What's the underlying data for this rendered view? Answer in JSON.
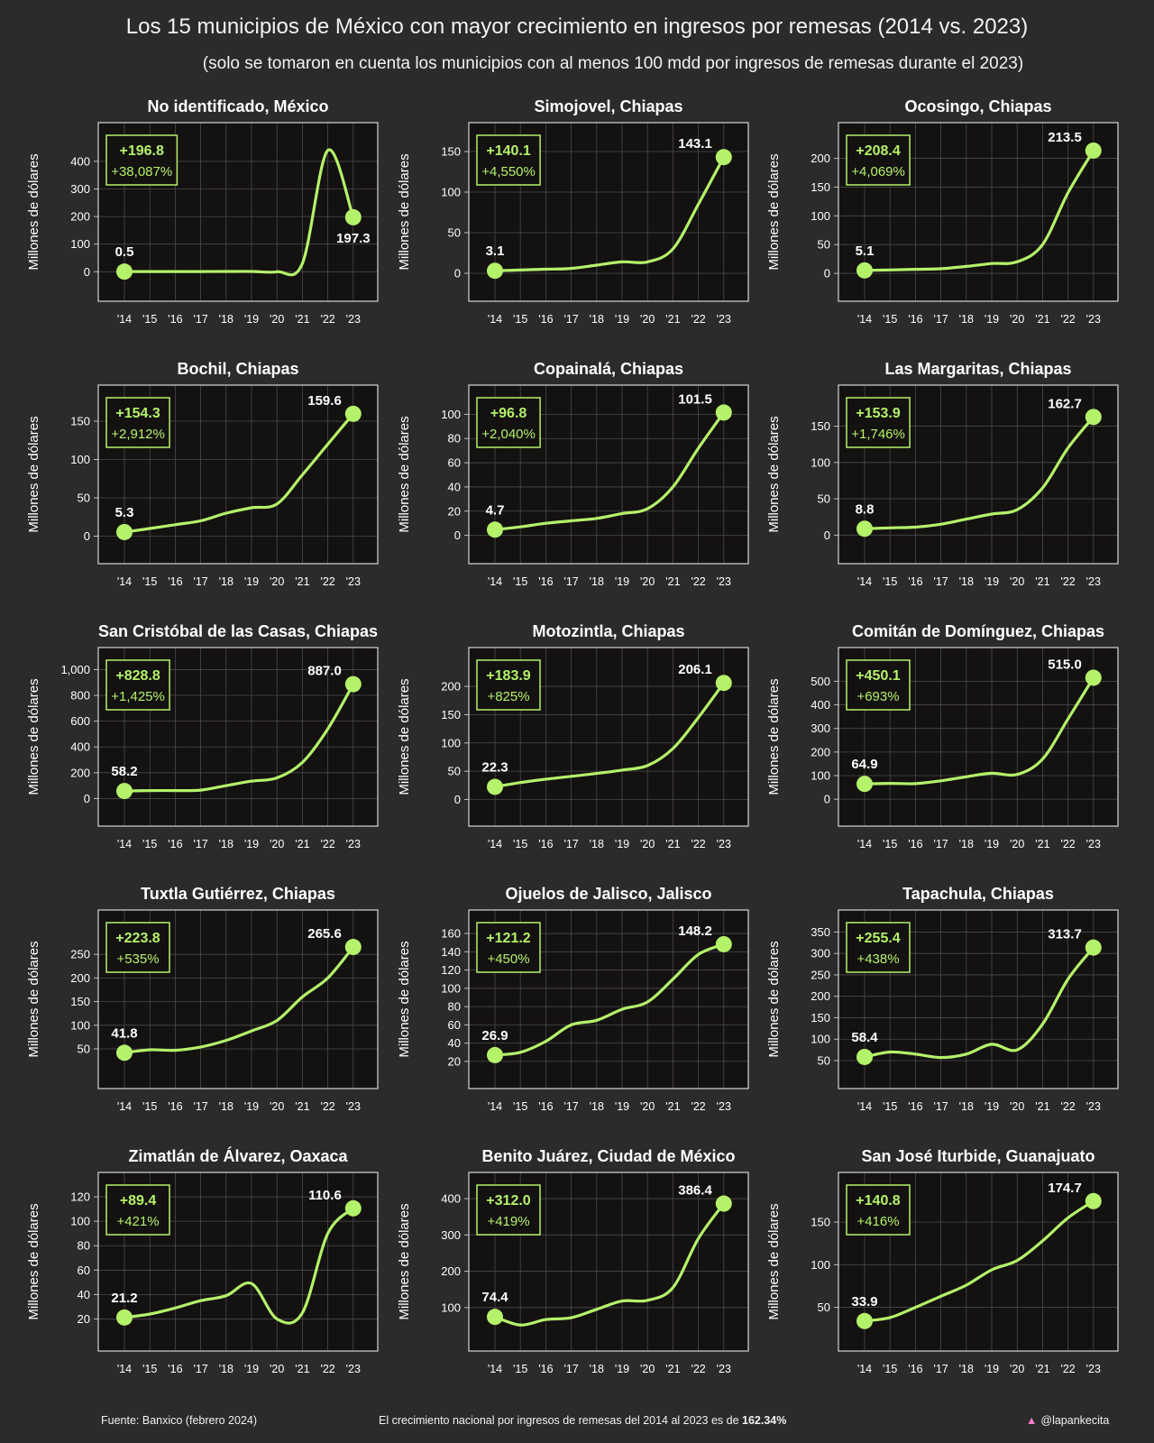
{
  "header": {
    "title": "Los 15 municipios de México con mayor crecimiento en ingresos por remesas (2014 vs. 2023)",
    "subtitle": "(solo se tomaron en cuenta los municipios con al menos 100 mdd por ingresos de remesas durante el 2023)"
  },
  "footer": {
    "source": "Fuente: Banxico (febrero 2024)",
    "national_prefix": "El crecimiento nacional por ingresos de remesas del 2014 al 2023 es de",
    "national_value": "162.34%",
    "handle": "@lapankecita"
  },
  "colors": {
    "background": "#2b2b2b",
    "plot_background": "#141111",
    "line": "#b4f26a",
    "text": "#ffffff",
    "grid": "#4a4a4a"
  },
  "chart_data": [
    {
      "type": "line",
      "title": "No identificado, México",
      "ylabel": "Millones de dólares",
      "x": [
        "'14",
        "'15",
        "'16",
        "'17",
        "'18",
        "'19",
        "'20",
        "'21",
        "'22",
        "'23"
      ],
      "values": [
        0.5,
        0.5,
        0.5,
        0.5,
        1,
        1,
        0,
        30,
        440,
        197.3
      ],
      "yticks": [
        0,
        100,
        200,
        300,
        400
      ],
      "ytick_labels": [
        "0",
        "100",
        "200",
        "300",
        "400"
      ],
      "ylim": [
        -35,
        465
      ],
      "start_label": "0.5",
      "end_label": "197.3",
      "change_abs": "+196.8",
      "change_pct": "+38,087%"
    },
    {
      "type": "line",
      "title": "Simojovel, Chiapas",
      "ylabel": "Millones de dólares",
      "x": [
        "'14",
        "'15",
        "'16",
        "'17",
        "'18",
        "'19",
        "'20",
        "'21",
        "'22",
        "'23"
      ],
      "values": [
        3.1,
        4,
        5,
        6,
        10,
        14,
        14,
        30,
        85,
        143.1
      ],
      "yticks": [
        0,
        50,
        100,
        150
      ],
      "ytick_labels": [
        "0",
        "50",
        "100",
        "150"
      ],
      "ylim": [
        -10,
        160
      ],
      "start_label": "3.1",
      "end_label": "143.1",
      "change_abs": "+140.1",
      "change_pct": "+4,550%"
    },
    {
      "type": "line",
      "title": "Ocosingo, Chiapas",
      "ylabel": "Millones de dólares",
      "x": [
        "'14",
        "'15",
        "'16",
        "'17",
        "'18",
        "'19",
        "'20",
        "'21",
        "'22",
        "'23"
      ],
      "values": [
        5.1,
        6,
        7,
        8,
        12,
        17,
        20,
        50,
        140,
        213.5
      ],
      "yticks": [
        0,
        50,
        100,
        150,
        200
      ],
      "ytick_labels": [
        "0",
        "50",
        "100",
        "150",
        "200"
      ],
      "ylim": [
        -14,
        226
      ],
      "start_label": "5.1",
      "end_label": "213.5",
      "change_abs": "+208.4",
      "change_pct": "+4,069%"
    },
    {
      "type": "line",
      "title": "Bochil, Chiapas",
      "ylabel": "Millones de dólares",
      "x": [
        "'14",
        "'15",
        "'16",
        "'17",
        "'18",
        "'19",
        "'20",
        "'21",
        "'22",
        "'23"
      ],
      "values": [
        5.3,
        10,
        15,
        20,
        30,
        37,
        42,
        80,
        120,
        159.6
      ],
      "yticks": [
        0,
        50,
        100,
        150
      ],
      "ytick_labels": [
        "0",
        "50",
        "100",
        "150"
      ],
      "ylim": [
        -10,
        170
      ],
      "start_label": "5.3",
      "end_label": "159.6",
      "change_abs": "+154.3",
      "change_pct": "+2,912%"
    },
    {
      "type": "line",
      "title": "Copainalá, Chiapas",
      "ylabel": "Millones de dólares",
      "x": [
        "'14",
        "'15",
        "'16",
        "'17",
        "'18",
        "'19",
        "'20",
        "'21",
        "'22",
        "'23"
      ],
      "values": [
        4.7,
        7,
        10,
        12,
        14,
        18,
        22,
        40,
        72,
        101.5
      ],
      "yticks": [
        0,
        20,
        40,
        60,
        80,
        100
      ],
      "ytick_labels": [
        "0",
        "20",
        "40",
        "60",
        "80",
        "100"
      ],
      "ylim": [
        -7,
        107
      ],
      "start_label": "4.7",
      "end_label": "101.5",
      "change_abs": "+96.8",
      "change_pct": "+2,040%"
    },
    {
      "type": "line",
      "title": "Las Margaritas, Chiapas",
      "ylabel": "Millones de dólares",
      "x": [
        "'14",
        "'15",
        "'16",
        "'17",
        "'18",
        "'19",
        "'20",
        "'21",
        "'22",
        "'23"
      ],
      "values": [
        8.8,
        10,
        11,
        15,
        22,
        29,
        35,
        65,
        120,
        162.7
      ],
      "yticks": [
        0,
        50,
        100,
        150
      ],
      "ytick_labels": [
        "0",
        "50",
        "100",
        "150"
      ],
      "ylim": [
        -12,
        178
      ],
      "start_label": "8.8",
      "end_label": "162.7",
      "change_abs": "+153.9",
      "change_pct": "+1,746%"
    },
    {
      "type": "line",
      "title": "San Cristóbal de las Casas, Chiapas",
      "ylabel": "Millones de dólares",
      "x": [
        "'14",
        "'15",
        "'16",
        "'17",
        "'18",
        "'19",
        "'20",
        "'21",
        "'22",
        "'23"
      ],
      "values": [
        58.2,
        62,
        62,
        65,
        100,
        135,
        160,
        280,
        540,
        887.0
      ],
      "yticks": [
        0,
        200,
        400,
        600,
        800,
        1000
      ],
      "ytick_labels": [
        "0",
        "200",
        "400",
        "600",
        "800",
        "1,000"
      ],
      "ylim": [
        -60,
        1010
      ],
      "start_label": "58.2",
      "end_label": "887.0",
      "change_abs": "+828.8",
      "change_pct": "+1,425%"
    },
    {
      "type": "line",
      "title": "Motozintla, Chiapas",
      "ylabel": "Millones de dólares",
      "x": [
        "'14",
        "'15",
        "'16",
        "'17",
        "'18",
        "'19",
        "'20",
        "'21",
        "'22",
        "'23"
      ],
      "values": [
        22.3,
        30,
        36,
        41,
        46,
        52,
        60,
        90,
        145,
        206.1
      ],
      "yticks": [
        0,
        50,
        100,
        150,
        200
      ],
      "ytick_labels": [
        "0",
        "50",
        "100",
        "150",
        "200"
      ],
      "ylim": [
        -12,
        232
      ],
      "start_label": "22.3",
      "end_label": "206.1",
      "change_abs": "+183.9",
      "change_pct": "+825%"
    },
    {
      "type": "line",
      "title": "Comitán de Domínguez, Chiapas",
      "ylabel": "Millones de dólares",
      "x": [
        "'14",
        "'15",
        "'16",
        "'17",
        "'18",
        "'19",
        "'20",
        "'21",
        "'22",
        "'23"
      ],
      "values": [
        64.9,
        67,
        66,
        78,
        95,
        110,
        105,
        170,
        340,
        515.0
      ],
      "yticks": [
        0,
        100,
        200,
        300,
        400,
        500
      ],
      "ytick_labels": [
        "0",
        "100",
        "200",
        "300",
        "400",
        "500"
      ],
      "ylim": [
        -30,
        555
      ],
      "start_label": "64.9",
      "end_label": "515.0",
      "change_abs": "+450.1",
      "change_pct": "+693%"
    },
    {
      "type": "line",
      "title": "Tuxtla Gutiérrez, Chiapas",
      "ylabel": "Millones de dólares",
      "x": [
        "'14",
        "'15",
        "'16",
        "'17",
        "'18",
        "'19",
        "'20",
        "'21",
        "'22",
        "'23"
      ],
      "values": [
        41.8,
        48,
        47,
        54,
        68,
        88,
        110,
        160,
        200,
        265.6
      ],
      "yticks": [
        50,
        100,
        150,
        200,
        250
      ],
      "ytick_labels": [
        "50",
        "100",
        "150",
        "200",
        "250"
      ],
      "ylim": [
        8,
        300
      ],
      "start_label": "41.8",
      "end_label": "265.6",
      "change_abs": "+223.8",
      "change_pct": "+535%"
    },
    {
      "type": "line",
      "title": "Ojuelos de Jalisco, Jalisco",
      "ylabel": "Millones de dólares",
      "x": [
        "'14",
        "'15",
        "'16",
        "'17",
        "'18",
        "'19",
        "'20",
        "'21",
        "'22",
        "'23"
      ],
      "values": [
        26.9,
        30,
        42,
        60,
        65,
        77,
        85,
        110,
        137,
        148.2
      ],
      "yticks": [
        20,
        40,
        60,
        80,
        100,
        120,
        140,
        160
      ],
      "ytick_labels": [
        "20",
        "40",
        "60",
        "80",
        "100",
        "120",
        "140",
        "160"
      ],
      "ylim": [
        12,
        163
      ],
      "start_label": "26.9",
      "end_label": "148.2",
      "change_abs": "+121.2",
      "change_pct": "+450%"
    },
    {
      "type": "line",
      "title": "Tapachula, Chiapas",
      "ylabel": "Millones de dólares",
      "x": [
        "'14",
        "'15",
        "'16",
        "'17",
        "'18",
        "'19",
        "'20",
        "'21",
        "'22",
        "'23"
      ],
      "values": [
        58.4,
        70,
        65,
        57,
        65,
        88,
        75,
        135,
        240,
        313.7
      ],
      "yticks": [
        50,
        100,
        150,
        200,
        250,
        300,
        350
      ],
      "ytick_labels": [
        "50",
        "100",
        "150",
        "200",
        "250",
        "300",
        "350"
      ],
      "ylim": [
        31,
        353
      ],
      "start_label": "58.4",
      "end_label": "313.7",
      "change_abs": "+255.4",
      "change_pct": "+438%"
    },
    {
      "type": "line",
      "title": "Zimatlán de Álvarez, Oaxaca",
      "ylabel": "Millones de dólares",
      "x": [
        "'14",
        "'15",
        "'16",
        "'17",
        "'18",
        "'19",
        "'20",
        "'21",
        "'22",
        "'23"
      ],
      "values": [
        21.2,
        24,
        29,
        35,
        39,
        49,
        20,
        25,
        90,
        110.6
      ],
      "yticks": [
        20,
        40,
        60,
        80,
        100,
        120
      ],
      "ytick_labels": [
        "20",
        "40",
        "60",
        "80",
        "100",
        "120"
      ],
      "ylim": [
        10,
        123
      ],
      "start_label": "21.2",
      "end_label": "110.6",
      "change_abs": "+89.4",
      "change_pct": "+421%"
    },
    {
      "type": "line",
      "title": "Benito Juárez, Ciudad de México",
      "ylabel": "Millones de dólares",
      "x": [
        "'14",
        "'15",
        "'16",
        "'17",
        "'18",
        "'19",
        "'20",
        "'21",
        "'22",
        "'23"
      ],
      "values": [
        74.4,
        52,
        67,
        72,
        95,
        118,
        120,
        155,
        290,
        386.4
      ],
      "yticks": [
        100,
        200,
        300,
        400
      ],
      "ytick_labels": [
        "100",
        "200",
        "300",
        "400"
      ],
      "ylim": [
        35,
        415
      ],
      "start_label": "74.4",
      "end_label": "386.4",
      "change_abs": "+312.0",
      "change_pct": "+419%"
    },
    {
      "type": "line",
      "title": "San José Iturbide, Guanajuato",
      "ylabel": "Millones de dólares",
      "x": [
        "'14",
        "'15",
        "'16",
        "'17",
        "'18",
        "'19",
        "'20",
        "'21",
        "'22",
        "'23"
      ],
      "values": [
        33.9,
        38,
        50,
        63,
        76,
        94,
        105,
        128,
        155,
        174.7
      ],
      "yticks": [
        50,
        100,
        150
      ],
      "ytick_labels": [
        "50",
        "100",
        "150"
      ],
      "ylim": [
        22,
        184
      ],
      "start_label": "33.9",
      "end_label": "174.7",
      "change_abs": "+140.8",
      "change_pct": "+416%"
    }
  ]
}
